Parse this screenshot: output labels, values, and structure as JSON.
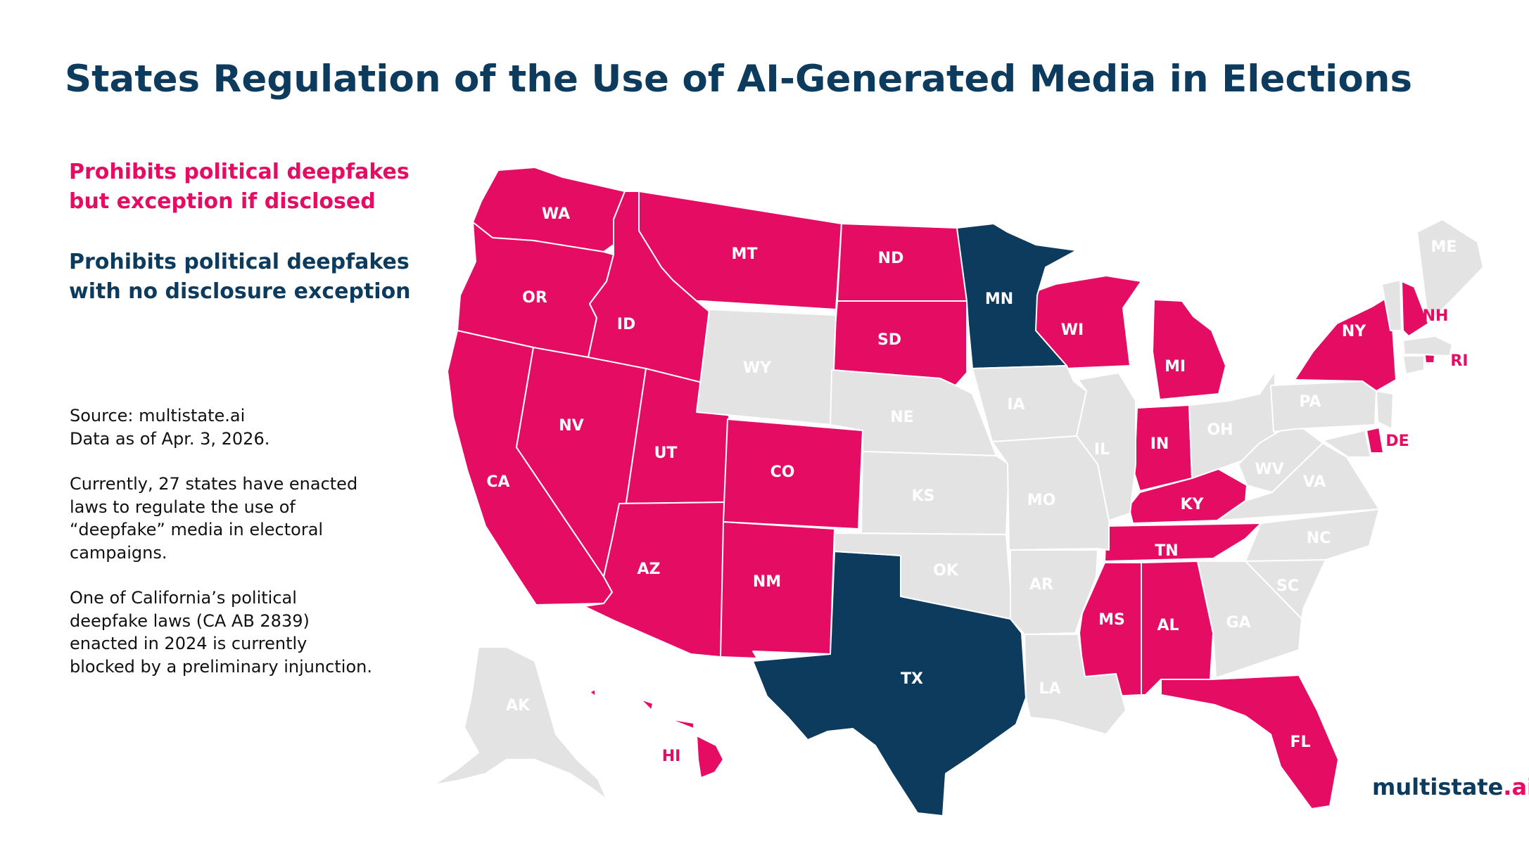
{
  "title": "States Regulation of the Use of AI-Generated Media in Elections",
  "legend": {
    "pink": {
      "lines": [
        "Prohibits political deepfakes",
        "but exception if disclosed"
      ],
      "color": "#e50c63"
    },
    "navy": {
      "lines": [
        "Prohibits political deepfakes",
        "with no disclosure exception"
      ],
      "color": "#0d3b5e"
    }
  },
  "notes": {
    "source": [
      "Source: multistate.ai",
      "Data as of Apr. 3, 2026."
    ],
    "summary": [
      "Currently, 27 states have enacted",
      "laws to regulate the use of",
      "“deepfake” media in electoral",
      "campaigns."
    ],
    "injunction": [
      "One of California’s political",
      "deepfake laws (CA AB 2839)",
      "enacted in 2024 is currently",
      "blocked by a preliminary injunction."
    ]
  },
  "logo": {
    "text": "multistate",
    "accent": ".ai"
  },
  "colors": {
    "pink": "#e50c63",
    "navy": "#0d3b5e",
    "none": "#e3e3e3",
    "label_none": "#ffffff"
  },
  "states": {
    "WA": "pink",
    "OR": "pink",
    "CA": "pink",
    "ID": "pink",
    "NV": "pink",
    "MT": "pink",
    "UT": "pink",
    "AZ": "pink",
    "CO": "pink",
    "NM": "pink",
    "ND": "pink",
    "SD": "pink",
    "WI": "pink",
    "MI": "pink",
    "IN": "pink",
    "KY": "pink",
    "TN": "pink",
    "MS": "pink",
    "AL": "pink",
    "FL": "pink",
    "NY": "pink",
    "NH": "pink",
    "DE": "pink",
    "RI": "pink",
    "HI": "pink",
    "MN": "navy",
    "TX": "navy",
    "WY": "none",
    "NE": "none",
    "KS": "none",
    "OK": "none",
    "IA": "none",
    "MO": "none",
    "AR": "none",
    "LA": "none",
    "IL": "none",
    "OH": "none",
    "WV": "none",
    "VA": "none",
    "NC": "none",
    "SC": "none",
    "GA": "none",
    "PA": "none",
    "NJ": "none",
    "MD": "none",
    "CT": "none",
    "MA": "none",
    "VT": "none",
    "ME": "none",
    "AK": "none"
  }
}
